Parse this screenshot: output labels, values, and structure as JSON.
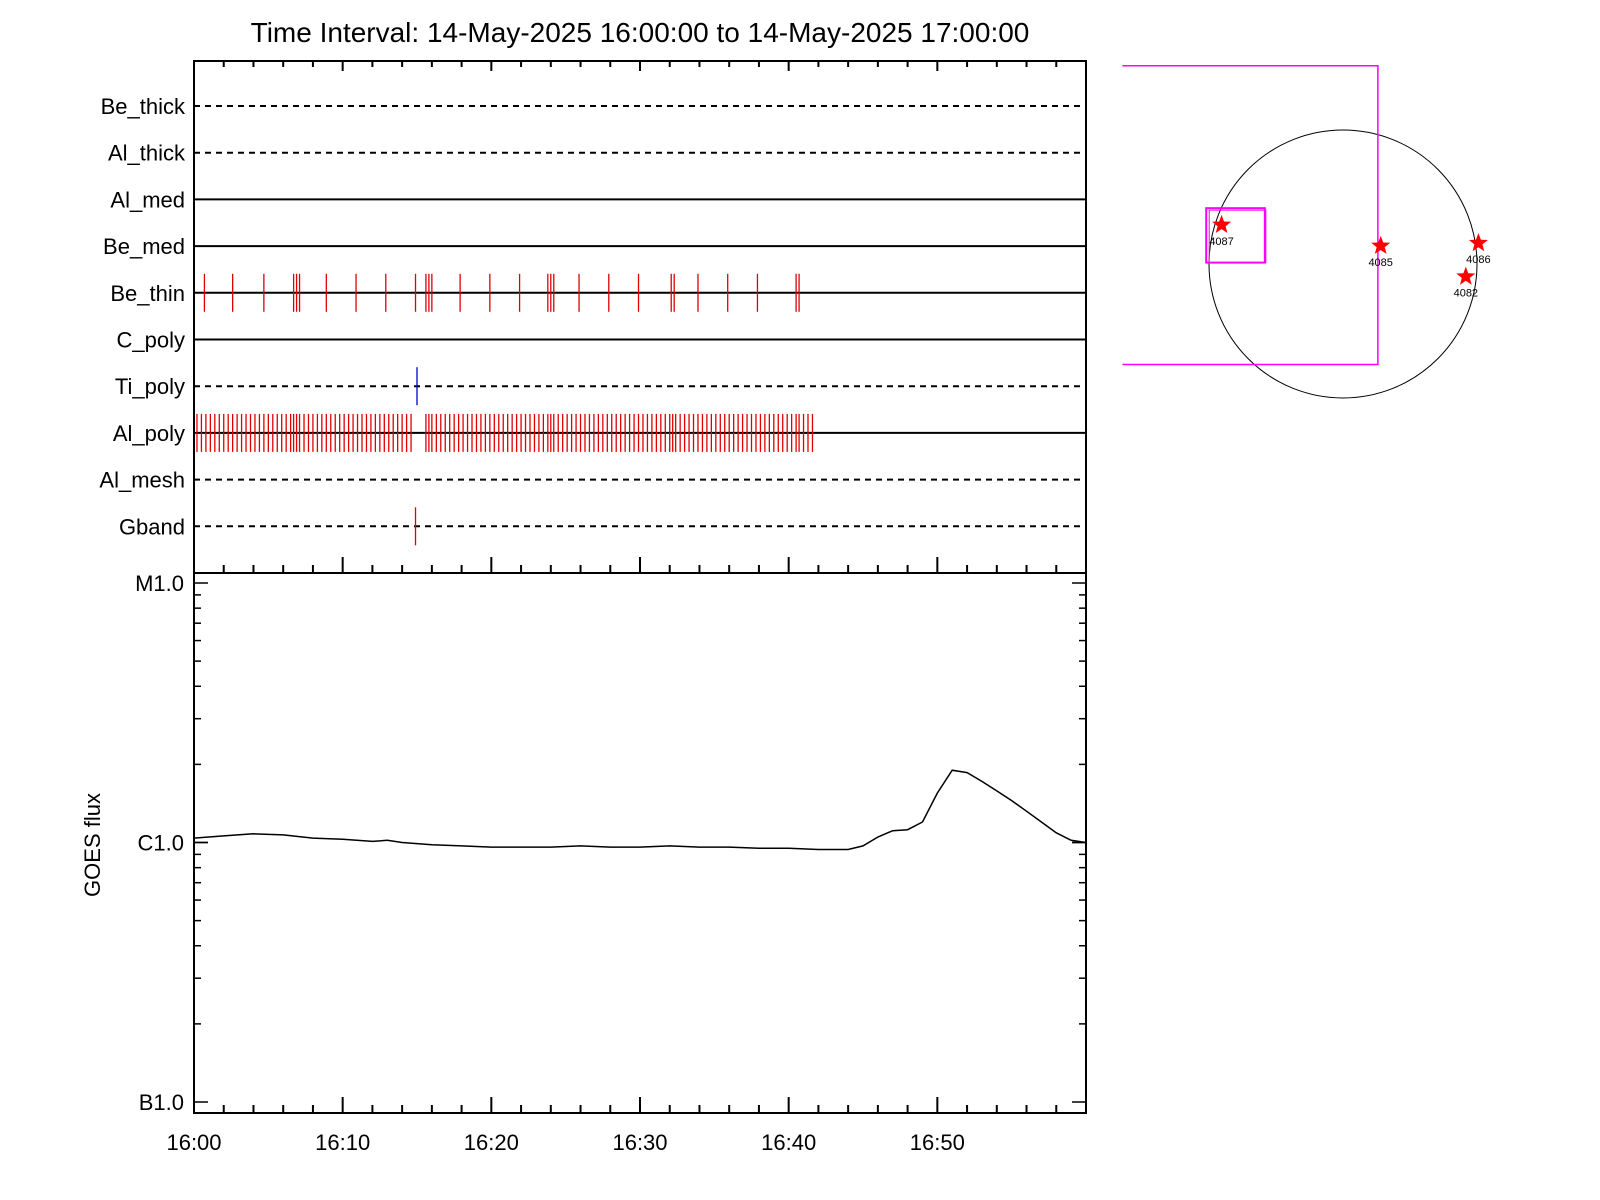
{
  "chart_data": [
    {
      "type": "timeline",
      "title": "Time Interval: 14-May-2025 16:00:00 to 14-May-2025 17:00:00",
      "xlim_minutes": [
        0,
        60
      ],
      "rows": [
        {
          "name": "Be_thick",
          "line": "dashed",
          "events": []
        },
        {
          "name": "Al_thick",
          "line": "dashed",
          "events": []
        },
        {
          "name": "Al_med",
          "line": "solid",
          "events": []
        },
        {
          "name": "Be_med",
          "line": "solid",
          "events": []
        },
        {
          "name": "Be_thin",
          "line": "solid",
          "color": "#e00000",
          "events": [
            0.7,
            2.6,
            4.7,
            6.7,
            6.9,
            7.1,
            8.9,
            10.9,
            12.9,
            14.9,
            15.6,
            15.8,
            16.0,
            17.9,
            19.9,
            21.9,
            23.8,
            24.0,
            24.2,
            25.9,
            27.9,
            29.9,
            32.1,
            32.3,
            33.9,
            35.9,
            37.9,
            40.5,
            40.7
          ]
        },
        {
          "name": "C_poly",
          "line": "solid",
          "events": []
        },
        {
          "name": "Ti_poly",
          "line": "dashed",
          "color": "#0000cc",
          "events": [
            15.0
          ]
        },
        {
          "name": "Al_poly",
          "line": "solid",
          "color": "#e00000",
          "events": [
            0.2,
            0.5,
            0.8,
            1.1,
            1.4,
            1.7,
            2.0,
            2.3,
            2.6,
            2.9,
            3.2,
            3.5,
            3.8,
            4.1,
            4.4,
            4.7,
            5.0,
            5.3,
            5.6,
            5.9,
            6.2,
            6.5,
            6.7,
            6.9,
            7.1,
            7.4,
            7.7,
            8.0,
            8.3,
            8.6,
            8.9,
            9.2,
            9.5,
            9.8,
            10.1,
            10.4,
            10.7,
            11.0,
            11.3,
            11.6,
            11.9,
            12.2,
            12.5,
            12.8,
            13.1,
            13.4,
            13.7,
            14.0,
            14.3,
            14.6,
            15.6,
            15.8,
            16.0,
            16.3,
            16.6,
            16.9,
            17.2,
            17.5,
            17.8,
            18.1,
            18.4,
            18.7,
            19.0,
            19.3,
            19.6,
            19.9,
            20.2,
            20.5,
            20.8,
            21.1,
            21.4,
            21.7,
            22.0,
            22.3,
            22.6,
            22.9,
            23.2,
            23.5,
            23.8,
            24.0,
            24.2,
            24.5,
            24.8,
            25.1,
            25.4,
            25.7,
            26.0,
            26.3,
            26.6,
            26.9,
            27.2,
            27.5,
            27.8,
            28.1,
            28.4,
            28.7,
            29.0,
            29.3,
            29.6,
            29.9,
            30.2,
            30.5,
            30.8,
            31.1,
            31.4,
            31.7,
            32.0,
            32.2,
            32.4,
            32.7,
            33.0,
            33.3,
            33.6,
            33.9,
            34.2,
            34.5,
            34.8,
            35.1,
            35.4,
            35.7,
            36.0,
            36.3,
            36.6,
            36.9,
            37.2,
            37.5,
            37.8,
            38.1,
            38.4,
            38.7,
            39.0,
            39.3,
            39.6,
            39.9,
            40.2,
            40.5,
            40.7,
            41.0,
            41.3,
            41.6
          ]
        },
        {
          "name": "Al_mesh",
          "line": "dashed",
          "events": []
        },
        {
          "name": "Gband",
          "line": "dashed",
          "color": "#e00000",
          "events": [
            14.9
          ]
        }
      ]
    },
    {
      "type": "line",
      "ylabel": "GOES flux",
      "yscale": "log",
      "ylim": [
        1e-07,
        1e-05
      ],
      "ytick_labels": [
        {
          "value": 1e-05,
          "label": "M1.0"
        },
        {
          "value": 1e-06,
          "label": "C1.0"
        },
        {
          "value": 1e-07,
          "label": "B1.0"
        }
      ],
      "xlim_minutes": [
        0,
        60
      ],
      "xtick_labels": [
        "16:00",
        "16:10",
        "16:20",
        "16:30",
        "16:40",
        "16:50"
      ],
      "series": [
        {
          "color": "#000000",
          "x_minutes": [
            0,
            2,
            4,
            6,
            8,
            10,
            12,
            13,
            14,
            16,
            18,
            20,
            22,
            24,
            26,
            28,
            30,
            32,
            34,
            36,
            38,
            40,
            42,
            44,
            45,
            46,
            47,
            48,
            49,
            50,
            51,
            52,
            53,
            54,
            55,
            56,
            57,
            58,
            59,
            60
          ],
          "y": [
            1.04e-06,
            1.06e-06,
            1.08e-06,
            1.07e-06,
            1.04e-06,
            1.03e-06,
            1.01e-06,
            1.02e-06,
            1e-06,
            9.8e-07,
            9.7e-07,
            9.6e-07,
            9.6e-07,
            9.6e-07,
            9.7e-07,
            9.6e-07,
            9.6e-07,
            9.7e-07,
            9.6e-07,
            9.6e-07,
            9.5e-07,
            9.5e-07,
            9.4e-07,
            9.4e-07,
            9.7e-07,
            1.05e-06,
            1.11e-06,
            1.12e-06,
            1.2e-06,
            1.55e-06,
            1.9e-06,
            1.86e-06,
            1.72e-06,
            1.58e-06,
            1.45e-06,
            1.32e-06,
            1.2e-06,
            1.09e-06,
            1.02e-06,
            1e-06
          ]
        }
      ]
    },
    {
      "type": "scatter",
      "subtype": "solar-disk-map",
      "points": [
        {
          "label": "4087",
          "x": -870,
          "y": 280
        },
        {
          "label": "4085",
          "x": 270,
          "y": 130
        },
        {
          "label": "4086",
          "x": 970,
          "y": 150
        },
        {
          "label": "4082",
          "x": 880,
          "y": -90
        }
      ],
      "disk_radius": 960,
      "fov_box": {
        "x": [
          -1580,
          250
        ],
        "y": [
          -720,
          1420
        ]
      },
      "small_box": {
        "x": [
          -980,
          -560
        ],
        "y": [
          10,
          400
        ]
      },
      "colors": {
        "marker": "#ff0000",
        "box": "#ff00ff",
        "disk": "#000000"
      }
    }
  ]
}
